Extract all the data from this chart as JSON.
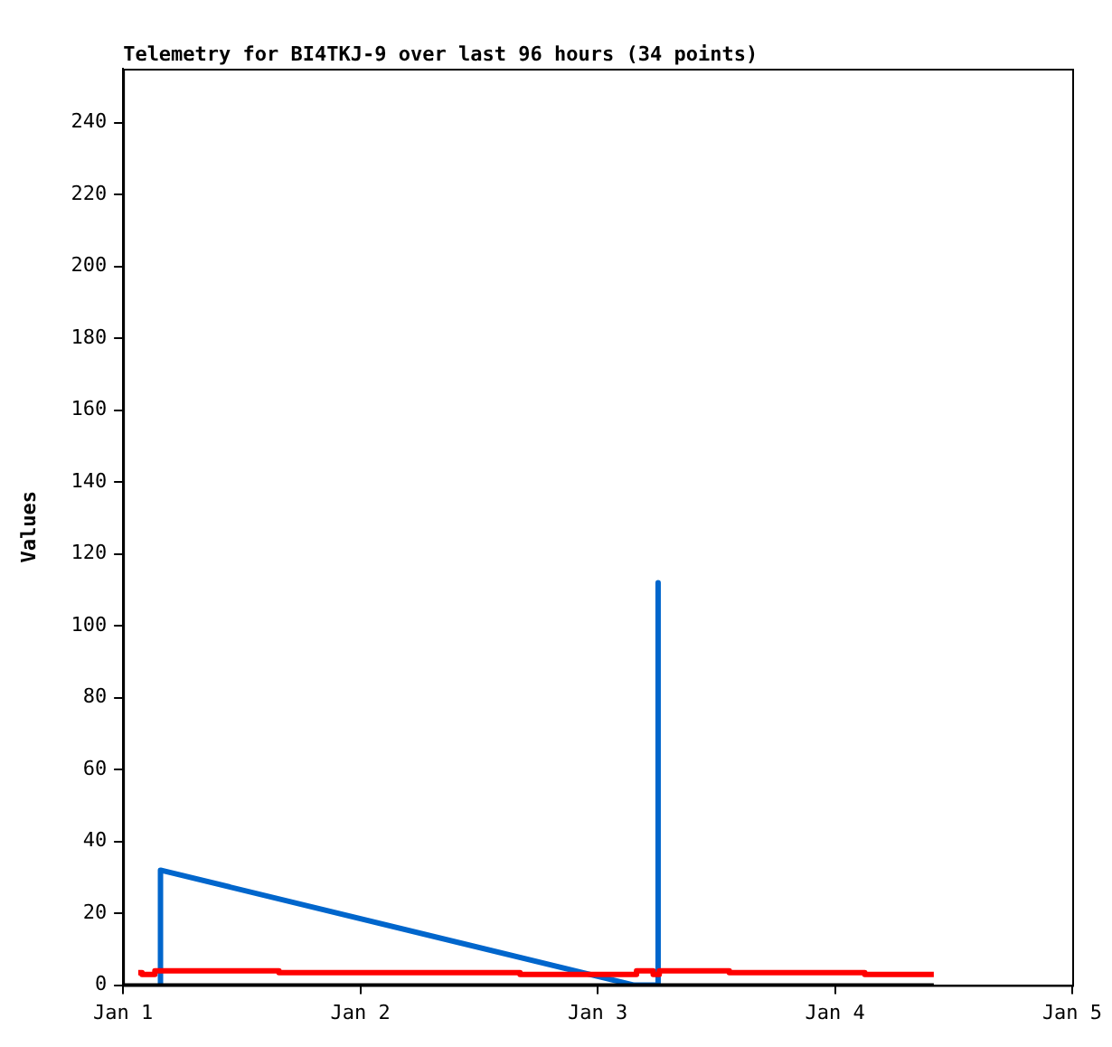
{
  "chart_data": {
    "type": "line",
    "title": "Telemetry for BI4TKJ-9 over last 96 hours (34 points)",
    "ylabel": "Values",
    "xlim": [
      "--01-01",
      "--01-05"
    ],
    "xticks": [
      {
        "value": "--01-01",
        "label": "Jan 1"
      },
      {
        "value": "--01-02",
        "label": "Jan 2"
      },
      {
        "value": "--01-03",
        "label": "Jan 3"
      },
      {
        "value": "--01-04",
        "label": "Jan 4"
      },
      {
        "value": "--01-05",
        "label": "Jan 5"
      }
    ],
    "ylim": [
      0,
      255
    ],
    "yticks": [
      0,
      20,
      40,
      60,
      80,
      100,
      120,
      140,
      160,
      180,
      200,
      220,
      240
    ],
    "grid": false,
    "legend": false,
    "marker": "none",
    "series": [
      {
        "type": "line",
        "color": "#000000",
        "x": [
          "--01-01T00:00",
          "--01-04T10:00"
        ],
        "values": [
          0,
          0
        ]
      },
      {
        "type": "step",
        "color": "#ff0000",
        "x": [
          "--01-01T01:32",
          "--01-01T01:55",
          "--01-01T03:13",
          "--01-01T15:46",
          "--01-02T16:09",
          "--01-03T03:56",
          "--01-03T05:37",
          "--01-03T06:14",
          "--01-03T13:19",
          "--01-04T03:01",
          "--01-04T10:00"
        ],
        "values": [
          3.5,
          3,
          4,
          3.5,
          3,
          4,
          3,
          4,
          3.5,
          3,
          3
        ]
      },
      {
        "type": "line",
        "color": "#0066cc",
        "x": [
          "--01-01T03:47",
          "--01-01T03:47",
          "--01-03T03:42",
          "--01-03T06:07",
          "--01-03T06:07",
          "--01-03T06:07"
        ],
        "values": [
          0,
          32,
          0,
          0,
          112,
          0
        ]
      }
    ]
  }
}
